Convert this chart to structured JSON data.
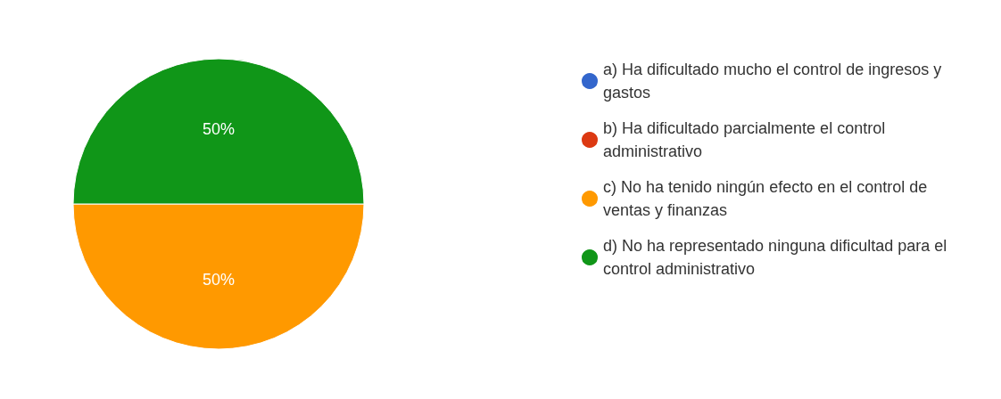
{
  "chart_data": {
    "type": "pie",
    "categories": [
      "a) Ha dificultado mucho el control de ingresos y gastos",
      "b) Ha dificultado parcialmente el control administrativo",
      "c) No ha tenido ningún efecto en el control de ventas y finanzas",
      "d) No ha representado ninguna dificultad para el control administrativo"
    ],
    "values": [
      0,
      0,
      50,
      50
    ],
    "colors": [
      "#3366cc",
      "#dc3912",
      "#ff9900",
      "#109618"
    ],
    "value_labels": [
      null,
      null,
      "50%",
      "50%"
    ],
    "legend": "right"
  }
}
